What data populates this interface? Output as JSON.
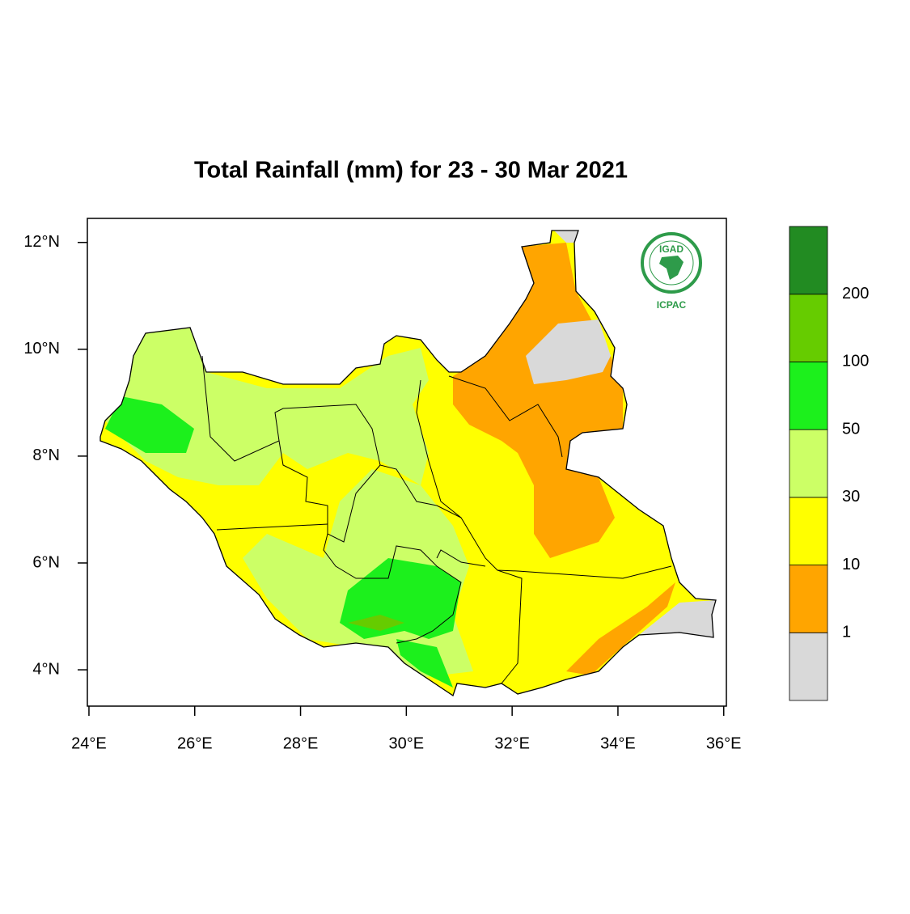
{
  "title": "Total Rainfall (mm) for 23 - 30 Mar 2021",
  "map": {
    "xlim": [
      23.97,
      36.05
    ],
    "ylim": [
      3.32,
      12.45
    ],
    "xticks": [
      {
        "value": 24,
        "label": "24°E"
      },
      {
        "value": 26,
        "label": "26°E"
      },
      {
        "value": 28,
        "label": "28°E"
      },
      {
        "value": 30,
        "label": "30°E"
      },
      {
        "value": 32,
        "label": "32°E"
      },
      {
        "value": 34,
        "label": "34°E"
      },
      {
        "value": 36,
        "label": "36°E"
      }
    ],
    "yticks": [
      {
        "value": 4,
        "label": "4°N"
      },
      {
        "value": 6,
        "label": "6°N"
      },
      {
        "value": 8,
        "label": "8°N"
      },
      {
        "value": 10,
        "label": "10°N"
      },
      {
        "value": 12,
        "label": "12°N"
      }
    ]
  },
  "colorbar": {
    "levels": [
      1,
      10,
      30,
      50,
      100,
      200
    ],
    "colors": [
      "#d9d9d9",
      "#ffa500",
      "#ffff00",
      "#ccff66",
      "#1cf01c",
      "#66cc00",
      "#228b22"
    ]
  },
  "logo": {
    "name": "IGAD",
    "org": "ICPAC"
  }
}
